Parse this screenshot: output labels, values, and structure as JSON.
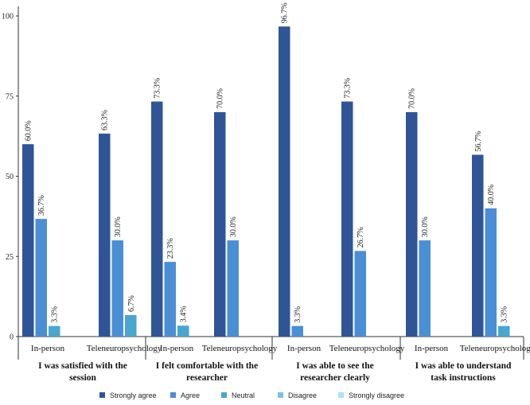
{
  "chart_data": {
    "type": "bar",
    "title": "",
    "xlabel": "",
    "ylabel": "",
    "ylim": [
      0,
      100
    ],
    "yticks": [
      0,
      25,
      50,
      75,
      100
    ],
    "groups": [
      {
        "label": "I was satisfied with the session",
        "lines": [
          "I was satisfied with the",
          "session"
        ]
      },
      {
        "label": "I felt comfortable with the researcher",
        "lines": [
          "I felt comfortable with the",
          "researcher"
        ]
      },
      {
        "label": "I was able to see the researcher clearly",
        "lines": [
          "I was able to see the",
          "researcher clearly"
        ]
      },
      {
        "label": "I was able to understand task instructions",
        "lines": [
          "I was able to understand",
          "task instructions"
        ]
      }
    ],
    "categories": [
      "In-person",
      "Teleneuropsychology",
      "In-person",
      "Teleneuropsychology",
      "In-person",
      "Teleneuropsychology",
      "In-person",
      "Teleneuropsychology"
    ],
    "series": [
      {
        "name": "Strongly agree",
        "color": "#2f5597",
        "values": [
          60.0,
          63.3,
          73.3,
          70.0,
          96.7,
          73.3,
          70.0,
          56.7
        ],
        "labels": [
          "60.0%",
          "63.3%",
          "73.3%",
          "70.0%",
          "96.7%",
          "73.3%",
          "70.0%",
          "56.7%"
        ]
      },
      {
        "name": "Agree",
        "color": "#4a8fd6",
        "values": [
          36.7,
          30.0,
          23.3,
          30.0,
          3.3,
          26.7,
          30.0,
          40.0
        ],
        "labels": [
          "36.7%",
          "30.0%",
          "23.3%",
          "30.0%",
          "3.3%",
          "26.7%",
          "30.0%",
          "40.0%"
        ]
      },
      {
        "name": "Neutral",
        "color": "#48a6cf",
        "values": [
          3.3,
          6.7,
          3.4,
          0,
          0,
          0,
          0,
          3.3
        ],
        "labels": [
          "3.3%",
          "6.7%",
          "3.4%",
          "",
          "",
          "",
          "",
          "3.3%"
        ]
      },
      {
        "name": "Disagree",
        "color": "#7dbfe0",
        "values": [
          0,
          0,
          0,
          0,
          0,
          0,
          0,
          0
        ],
        "labels": [
          "",
          "",
          "",
          "",
          "",
          "",
          "",
          ""
        ]
      },
      {
        "name": "Strongly disagree",
        "color": "#a9e3ef",
        "values": [
          0,
          0,
          0,
          0,
          0,
          0,
          0,
          0
        ],
        "labels": [
          "",
          "",
          "",
          "",
          "",
          "",
          "",
          ""
        ]
      }
    ],
    "legend_position": "bottom"
  }
}
